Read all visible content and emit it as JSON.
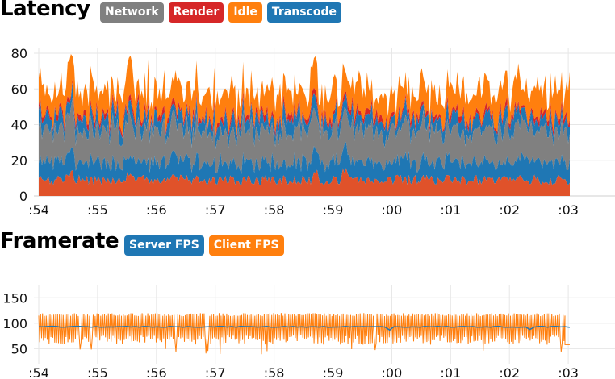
{
  "colors": {
    "network": "#808080",
    "render": "#d62728",
    "idle": "#ff7f0e",
    "transcode": "#1f77b4",
    "render_base": "#e0522a",
    "grid": "#e6e6e6"
  },
  "chart_data": [
    {
      "type": "area",
      "title": "Latency",
      "stacked": true,
      "legend_position": "top-left, next to title",
      "legend": [
        {
          "label": "Network",
          "color": "#808080"
        },
        {
          "label": "Render",
          "color": "#d62728"
        },
        {
          "label": "Idle",
          "color": "#ff7f0e"
        },
        {
          "label": "Transcode",
          "color": "#1f77b4"
        }
      ],
      "x_ticks": [
        ":54",
        ":55",
        ":56",
        ":57",
        ":58",
        ":59",
        ":00",
        ":01",
        ":02",
        ":03"
      ],
      "y_ticks": [
        "0",
        "20",
        "40",
        "60",
        "80"
      ],
      "ylim": [
        0,
        80
      ],
      "grid": true,
      "typical_bands": {
        "render_low": [
          0,
          10
        ],
        "transcode_low": [
          10,
          20
        ],
        "network": [
          20,
          38
        ],
        "transcode_high": [
          38,
          44
        ],
        "render_high": [
          44,
          46
        ],
        "idle_top": [
          46,
          60
        ]
      },
      "peaks": [
        {
          "x": 0.55,
          "y": 80
        },
        {
          "x": 1.55,
          "y": 80
        },
        {
          "x": 4.7,
          "y": 79
        },
        {
          "x": 5.2,
          "y": 72
        },
        {
          "x": 9.1,
          "y": 73
        }
      ]
    },
    {
      "type": "line",
      "title": "Framerate",
      "legend_position": "top-left, next to title",
      "legend": [
        {
          "label": "Server FPS",
          "color": "#1f77b4"
        },
        {
          "label": "Client FPS",
          "color": "#ff7f0e"
        }
      ],
      "x_ticks": [
        ":54",
        ":55",
        ":56",
        ":57",
        ":58",
        ":59",
        ":00",
        ":01",
        ":02",
        ":03"
      ],
      "y_ticks": [
        "50",
        "100",
        "150"
      ],
      "ylim": [
        30,
        160
      ],
      "grid": true,
      "series": [
        {
          "name": "Server FPS",
          "typical": 93,
          "end_value": 92
        },
        {
          "name": "Client FPS",
          "range": [
            58,
            120
          ],
          "end_value": 58
        }
      ]
    }
  ]
}
